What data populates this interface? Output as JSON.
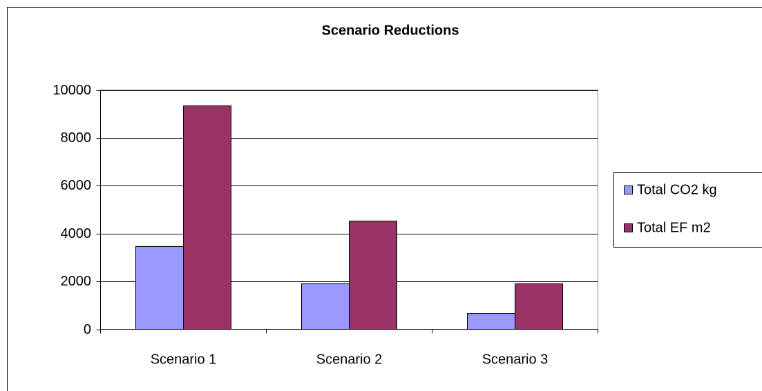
{
  "chart_data": {
    "type": "bar",
    "title": "Scenario Reductions",
    "categories": [
      "Scenario 1",
      "Scenario 2",
      "Scenario 3"
    ],
    "series": [
      {
        "name": "Total CO2 kg",
        "color": "#9999ff",
        "values": [
          3460,
          1900,
          660
        ]
      },
      {
        "name": "Total EF m2",
        "color": "#993366",
        "values": [
          9340,
          4520,
          1900
        ]
      }
    ],
    "ylim": [
      0,
      10000
    ],
    "yticks": [
      0,
      2000,
      4000,
      6000,
      8000,
      10000
    ],
    "grid": true,
    "legend": "right"
  }
}
